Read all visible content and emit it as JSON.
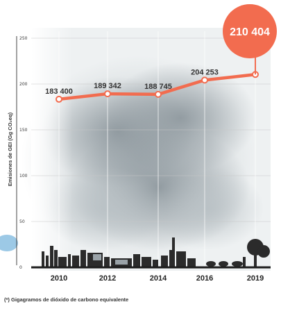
{
  "chart_data": {
    "type": "line",
    "x": [
      "2010",
      "2012",
      "2014",
      "2016",
      "2019"
    ],
    "values": [
      183400,
      189342,
      188745,
      204253,
      210404
    ],
    "data_labels": [
      "183 400",
      "189 342",
      "188 745",
      "204 253",
      "210 404"
    ],
    "y_tick_labels": [
      "250",
      "200",
      "150",
      "100",
      "50",
      "0"
    ],
    "y_tick_values": [
      250000,
      200000,
      150000,
      100000,
      50000,
      0
    ],
    "ylabel": "Emisiones de GEI (Gg CO₂eq)",
    "ylim": [
      0,
      250000
    ],
    "grid": true,
    "highlight": {
      "index": 4,
      "label": "210 404"
    },
    "colors": {
      "line": "#f26c4f",
      "highlight": "#f26c4f",
      "grid": "#c8c8c8"
    }
  },
  "footnote": "(*) Gigagramos de dióxido de carbono equivalente"
}
